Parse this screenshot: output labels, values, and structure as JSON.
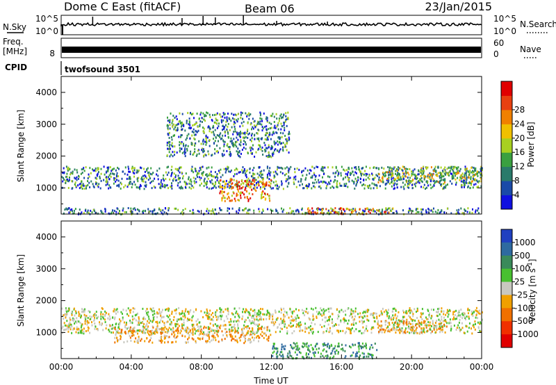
{
  "header": {
    "station": "Dome C East (fitACF)",
    "beam": "Beam 06",
    "date": "23/Jan/2015"
  },
  "nsky_panel": {
    "left_label": "N.Sky",
    "left_ticks": [
      "10^5",
      "10^0"
    ],
    "right_ticks": [
      "10^5",
      "10^0"
    ],
    "right_label": "N.Search",
    "right_label_style": "dotted"
  },
  "freq_panel": {
    "left_label_1": "Freq.",
    "left_label_2": "[MHz]",
    "left_ticks": [
      "8"
    ],
    "right_ticks": [
      "60",
      "0"
    ],
    "right_label": "Nave",
    "right_label_style": "dotted"
  },
  "cpid": {
    "label": "CPID",
    "value": "twofsound 3501"
  },
  "chart_data": [
    {
      "type": "heatmap",
      "name_printed": "",
      "ylabel": "Slant Range [km]",
      "xlabel": "",
      "x_ticks": [
        "00:00",
        "04:00",
        "08:00",
        "12:00",
        "16:00",
        "20:00",
        "00:00"
      ],
      "x_range_hours": [
        0,
        24
      ],
      "y_ticks": [
        1000,
        2000,
        3000,
        4000
      ],
      "ylim": [
        180,
        4500
      ],
      "colorbar": {
        "label": "Power [dB]",
        "ticks": [
          "4",
          "8",
          "12",
          "16",
          "20",
          "24",
          "28"
        ],
        "range": [
          0,
          30
        ],
        "colors": [
          "#1010e0",
          "#1a4aa8",
          "#2a7a6a",
          "#3aa040",
          "#a8d020",
          "#f0c000",
          "#f08000",
          "#e84010",
          "#e00000"
        ]
      },
      "regions": [
        {
          "hours": [
            0,
            24
          ],
          "range_km": [
            1000,
            1700
          ],
          "level": "low"
        },
        {
          "hours": [
            0,
            24
          ],
          "range_km": [
            200,
            400
          ],
          "level": "low"
        },
        {
          "hours": [
            6,
            13
          ],
          "range_km": [
            2000,
            3400
          ],
          "level": "low"
        },
        {
          "hours": [
            9,
            12
          ],
          "range_km": [
            600,
            1300
          ],
          "level": "high"
        },
        {
          "hours": [
            14,
            19
          ],
          "range_km": [
            200,
            400
          ],
          "level": "high"
        },
        {
          "hours": [
            18,
            24
          ],
          "range_km": [
            1200,
            1700
          ],
          "level": "medium"
        }
      ]
    },
    {
      "type": "heatmap",
      "name_printed": "",
      "ylabel": "Slant Range [km]",
      "xlabel": "Time UT",
      "x_ticks": [
        "00:00",
        "04:00",
        "08:00",
        "12:00",
        "16:00",
        "20:00",
        "00:00"
      ],
      "x_range_hours": [
        0,
        24
      ],
      "y_ticks": [
        1000,
        2000,
        3000,
        4000
      ],
      "ylim": [
        180,
        4500
      ],
      "colorbar": {
        "label": "Velocity [m s-1]",
        "label_main": "Velocity",
        "label_unit": "[m s",
        "label_sup": "-1",
        "label_close": "]",
        "ticks": [
          "1000",
          "500",
          "100",
          "25",
          "-25",
          "-100",
          "-500",
          "-1000"
        ],
        "colors": [
          "#2040c0",
          "#2e6aa0",
          "#3a8a5a",
          "#48c030",
          "#c8c8c0",
          "#f0a000",
          "#f07000",
          "#f03000",
          "#e00000"
        ]
      },
      "regions": [
        {
          "hours": [
            0,
            24
          ],
          "range_km": [
            1000,
            1800
          ],
          "sign": "mixed"
        },
        {
          "hours": [
            3,
            12
          ],
          "range_km": [
            700,
            1200
          ],
          "sign": "negative"
        },
        {
          "hours": [
            12,
            18
          ],
          "range_km": [
            200,
            700
          ],
          "sign": "positive"
        },
        {
          "hours": [
            18,
            22
          ],
          "range_km": [
            1000,
            1400
          ],
          "sign": "negative"
        }
      ]
    }
  ],
  "colors": {
    "frame": "#000000",
    "background": "#ffffff"
  }
}
